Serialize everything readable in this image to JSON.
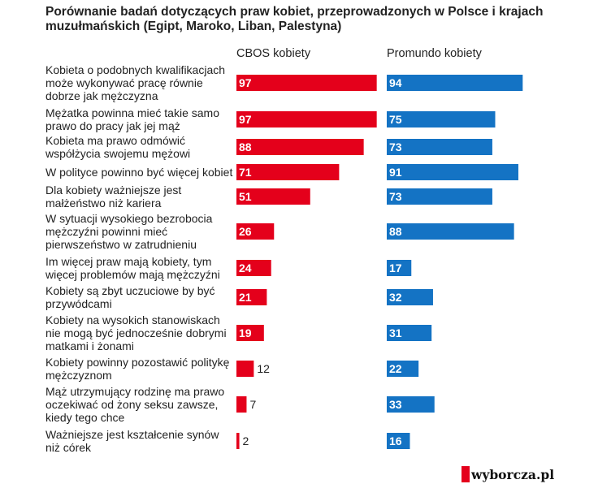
{
  "title": "Porównanie badań dotyczących praw kobiet, przeprowadzonych w Polsce i krajach muzułmańskich (Egipt, Maroko, Liban, Palestyna)",
  "logo_text": "wyborcza.pl",
  "colors": {
    "cbos": "#e4001b",
    "promundo": "#1473c4",
    "bar_text": "#ffffff",
    "outside_text": "#222222"
  },
  "chart_data": {
    "type": "bar",
    "orientation": "horizontal",
    "title": "Porównanie badań dotyczących praw kobiet, przeprowadzonych w Polsce i krajach muzułmańskich (Egipt, Maroko, Liban, Palestyna)",
    "categories": [
      "Kobieta o podobnych kwalifikacjach może wykonywać pracę równie dobrze jak mężczyzna",
      "Mężatka powinna mieć takie samo prawo do pracy jak jej mąż",
      "Kobieta ma prawo odmówić współżycia swojemu mężowi",
      "W polityce powinno być więcej kobiet",
      "Dla kobiety ważniejsze jest małżeństwo niż kariera",
      "W sytuacji wysokiego bezrobocia mężczyźni powinni mieć pierwszeństwo w zatrudnieniu",
      "Im więcej praw mają kobiety, tym więcej problemów mają mężczyźni",
      "Kobiety są zbyt uczuciowe by być przywódcami",
      "Kobiety na wysokich stanowiskach nie mogą być jednocześnie dobrymi matkami i żonami",
      "Kobiety powinny pozostawić politykę mężczyznom",
      "Mąż utrzymujący rodzinę ma prawo oczekiwać od żony seksu zawsze, kiedy tego chce",
      "Ważniejsze jest kształcenie synów niż córek"
    ],
    "series": [
      {
        "name": "CBOS kobiety",
        "color": "#e4001b",
        "values": [
          97,
          97,
          88,
          71,
          51,
          26,
          24,
          21,
          19,
          12,
          7,
          2
        ]
      },
      {
        "name": "Promundo kobiety",
        "color": "#1473c4",
        "values": [
          94,
          75,
          73,
          91,
          73,
          88,
          17,
          32,
          31,
          22,
          33,
          16
        ]
      }
    ],
    "xlim": [
      0,
      100
    ],
    "grid": false,
    "legend": "column headers"
  }
}
